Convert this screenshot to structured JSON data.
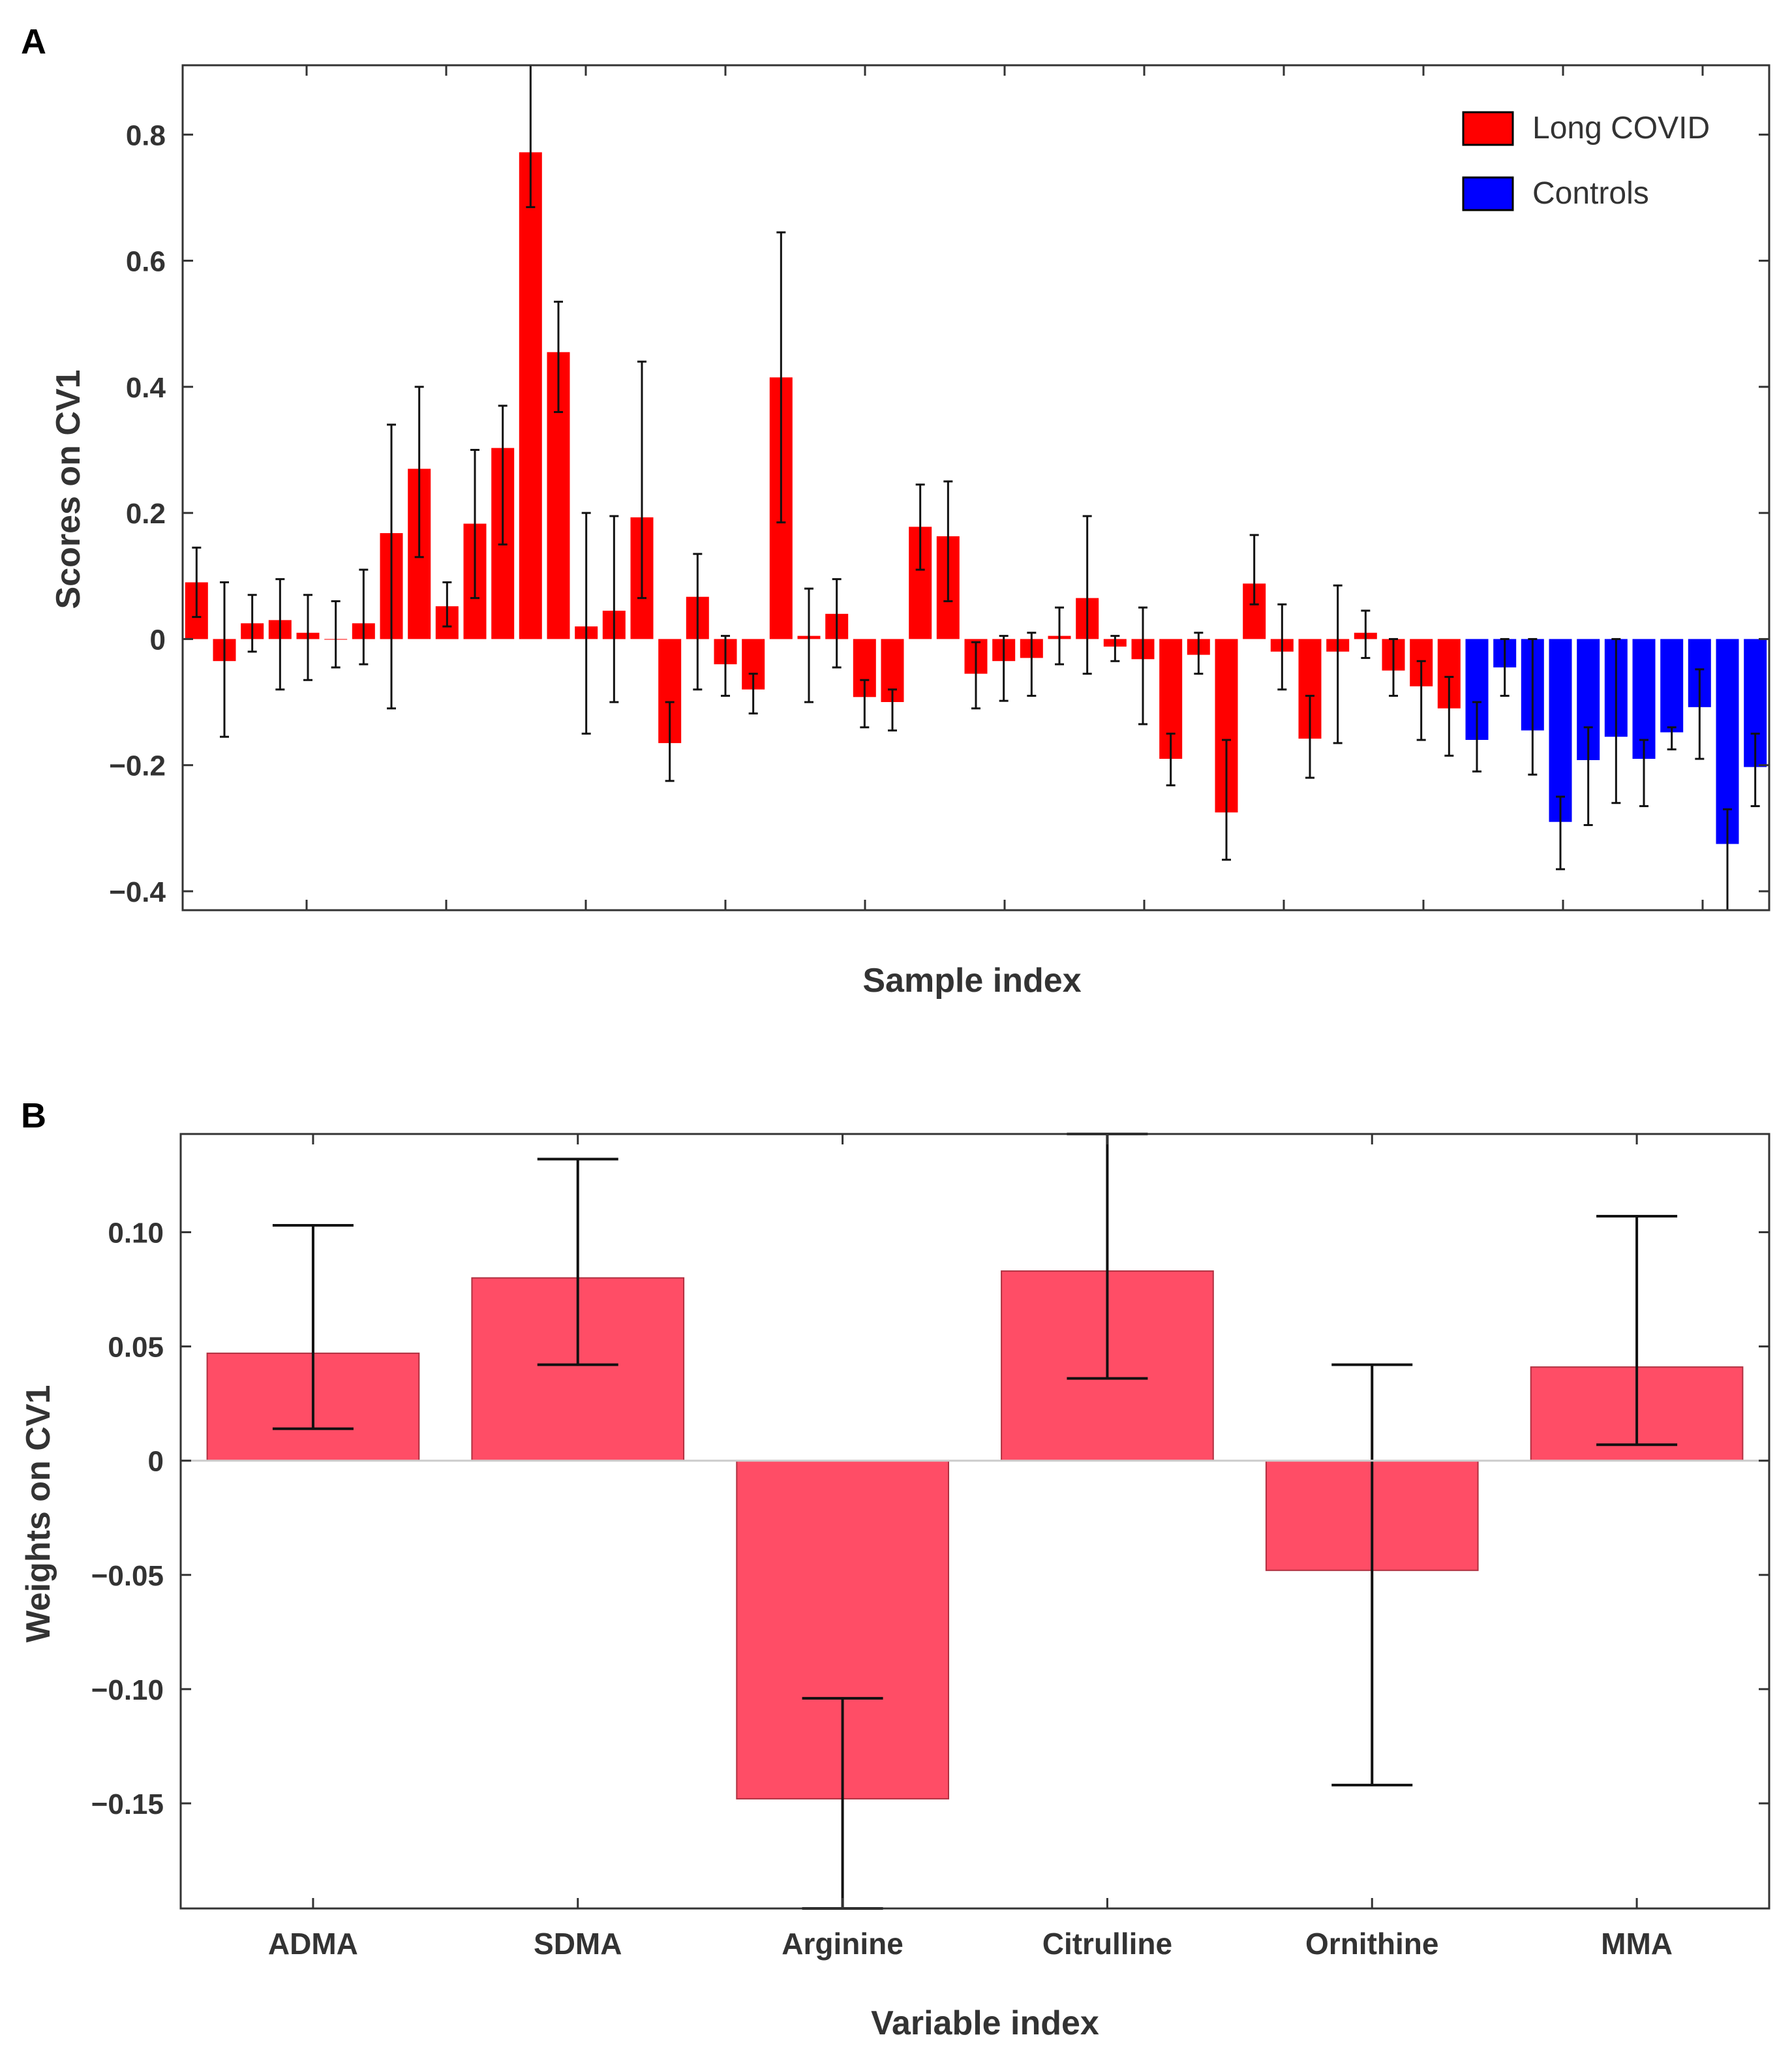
{
  "colors": {
    "long_covid": "#ff0000",
    "controls": "#0000ff",
    "weights": "#ff4d66",
    "axis": "#333333",
    "error_bar": "#111111"
  },
  "panels": {
    "a": {
      "label": "A"
    },
    "b": {
      "label": "B"
    }
  },
  "chart_data": [
    {
      "type": "bar",
      "panel": "A",
      "xlabel": "Sample index",
      "ylabel": "Scores on CV1",
      "ylim": [
        -0.43,
        0.91
      ],
      "yticks": [
        -0.4,
        -0.2,
        0,
        0.2,
        0.4,
        0.6,
        0.8
      ],
      "ytick_labels": [
        "−0.4",
        "−0.2",
        "0",
        "0.2",
        "0.4",
        "0.6",
        "0.8"
      ],
      "grid": false,
      "legend_position": "top-right",
      "series": [
        {
          "name": "Long COVID",
          "color": "#ff0000",
          "values": [
            0.09,
            -0.035,
            0.025,
            0.03,
            0.01,
            0.0,
            0.025,
            0.168,
            0.27,
            0.052,
            0.183,
            0.303,
            0.772,
            0.455,
            0.02,
            0.045,
            0.193,
            -0.165,
            0.067,
            -0.04,
            -0.08,
            0.415,
            0.005,
            0.04,
            -0.092,
            -0.1,
            0.178,
            0.163,
            -0.055,
            -0.035,
            -0.03,
            0.005,
            0.065,
            -0.012,
            -0.032,
            -0.19,
            -0.025,
            -0.275,
            0.088,
            -0.02,
            -0.158,
            -0.02,
            0.01,
            -0.05,
            -0.075,
            -0.11
          ],
          "error_low": [
            0.035,
            -0.155,
            -0.02,
            -0.08,
            -0.065,
            -0.045,
            -0.04,
            -0.11,
            0.13,
            0.02,
            0.065,
            0.15,
            0.685,
            0.36,
            -0.15,
            -0.1,
            0.065,
            -0.225,
            -0.08,
            -0.09,
            -0.118,
            0.185,
            -0.1,
            -0.045,
            -0.14,
            -0.145,
            0.11,
            0.06,
            -0.11,
            -0.098,
            -0.09,
            -0.04,
            -0.055,
            -0.035,
            -0.135,
            -0.232,
            -0.055,
            -0.35,
            0.055,
            -0.08,
            -0.22,
            -0.165,
            -0.03,
            -0.09,
            -0.16,
            -0.185
          ],
          "error_high": [
            0.145,
            0.09,
            0.07,
            0.095,
            0.07,
            0.06,
            0.11,
            0.34,
            0.4,
            0.09,
            0.3,
            0.37,
            0.91,
            0.535,
            0.2,
            0.195,
            0.44,
            -0.1,
            0.135,
            0.005,
            -0.055,
            0.645,
            0.08,
            0.095,
            -0.065,
            -0.08,
            0.245,
            0.25,
            -0.005,
            0.005,
            0.01,
            0.05,
            0.195,
            0.005,
            0.05,
            -0.15,
            0.01,
            -0.16,
            0.165,
            0.055,
            -0.09,
            0.085,
            0.045,
            0.0,
            -0.035,
            -0.06
          ]
        },
        {
          "name": "Controls",
          "color": "#0000ff",
          "values": [
            -0.16,
            -0.045,
            -0.145,
            -0.29,
            -0.192,
            -0.155,
            -0.19,
            -0.148,
            -0.108,
            -0.325,
            -0.203
          ],
          "error_low": [
            -0.21,
            -0.09,
            -0.215,
            -0.365,
            -0.295,
            -0.26,
            -0.265,
            -0.175,
            -0.19,
            -0.43,
            -0.265
          ],
          "error_high": [
            -0.1,
            0.0,
            0.0,
            -0.25,
            -0.14,
            0.0,
            -0.16,
            -0.14,
            -0.048,
            -0.27,
            -0.15
          ]
        }
      ]
    },
    {
      "type": "bar",
      "panel": "B",
      "xlabel": "Variable index",
      "ylabel": "Weights on CV1",
      "ylim": [
        -0.196,
        0.143
      ],
      "yticks": [
        -0.15,
        -0.1,
        -0.05,
        0,
        0.05,
        0.1
      ],
      "ytick_labels": [
        "−0.15",
        "−0.10",
        "−0.05",
        "0",
        "0.05",
        "0.10"
      ],
      "grid": false,
      "categories": [
        "ADMA",
        "SDMA",
        "Arginine",
        "Citrulline",
        "Ornithine",
        "MMA"
      ],
      "series": [
        {
          "color": "#ff4d66",
          "values": [
            0.047,
            0.08,
            -0.148,
            0.083,
            -0.048,
            0.041
          ],
          "error_low": [
            0.014,
            0.042,
            -0.196,
            0.036,
            -0.142,
            0.007
          ],
          "error_high": [
            0.103,
            0.132,
            -0.104,
            0.143,
            0.042,
            0.107
          ]
        }
      ]
    }
  ]
}
